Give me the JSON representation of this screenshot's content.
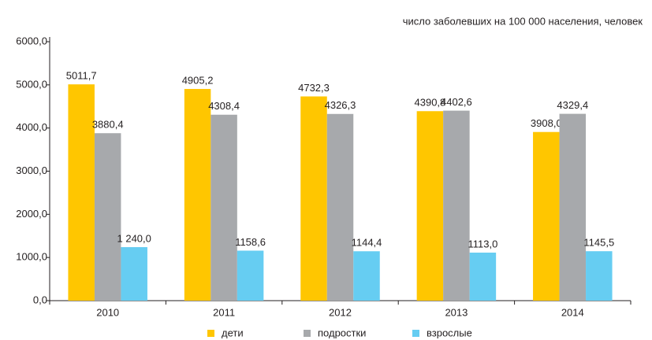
{
  "chart_data": {
    "type": "bar",
    "subtitle": "число заболевших на 100 000 населения, человек",
    "categories": [
      "2010",
      "2011",
      "2012",
      "2013",
      "2014"
    ],
    "series": [
      {
        "name": "дети",
        "color": "#ffc600",
        "values": [
          5011.7,
          4905.2,
          4732.3,
          4390.8,
          3908.0
        ],
        "value_labels": [
          "5011,7",
          "4905,2",
          "4732,3",
          "4390,8",
          "3908,0"
        ]
      },
      {
        "name": "подростки",
        "color": "#a7a9ac",
        "values": [
          3880.4,
          4308.4,
          4326.3,
          4402.6,
          4329.4
        ],
        "value_labels": [
          "3880,4",
          "4308,4",
          "4326,3",
          "4402,6",
          "4329,4"
        ]
      },
      {
        "name": "взрослые",
        "color": "#66cdf2",
        "values": [
          1240.0,
          1158.6,
          1144.4,
          1113.0,
          1145.5
        ],
        "value_labels": [
          "1 240,0",
          "1158,6",
          "1144,4",
          "1113,0",
          "1145,5"
        ]
      }
    ],
    "ylim": [
      0,
      6000
    ],
    "yticks": [
      {
        "value": 0,
        "label": "0,0"
      },
      {
        "value": 1000,
        "label": "1000,0"
      },
      {
        "value": 2000,
        "label": "2000,0"
      },
      {
        "value": 3000,
        "label": "3000,0"
      },
      {
        "value": 4000,
        "label": "4000,0"
      },
      {
        "value": 5000,
        "label": "5000,0"
      },
      {
        "value": 6000,
        "label": "6000,0"
      }
    ],
    "legend": "bottom"
  }
}
